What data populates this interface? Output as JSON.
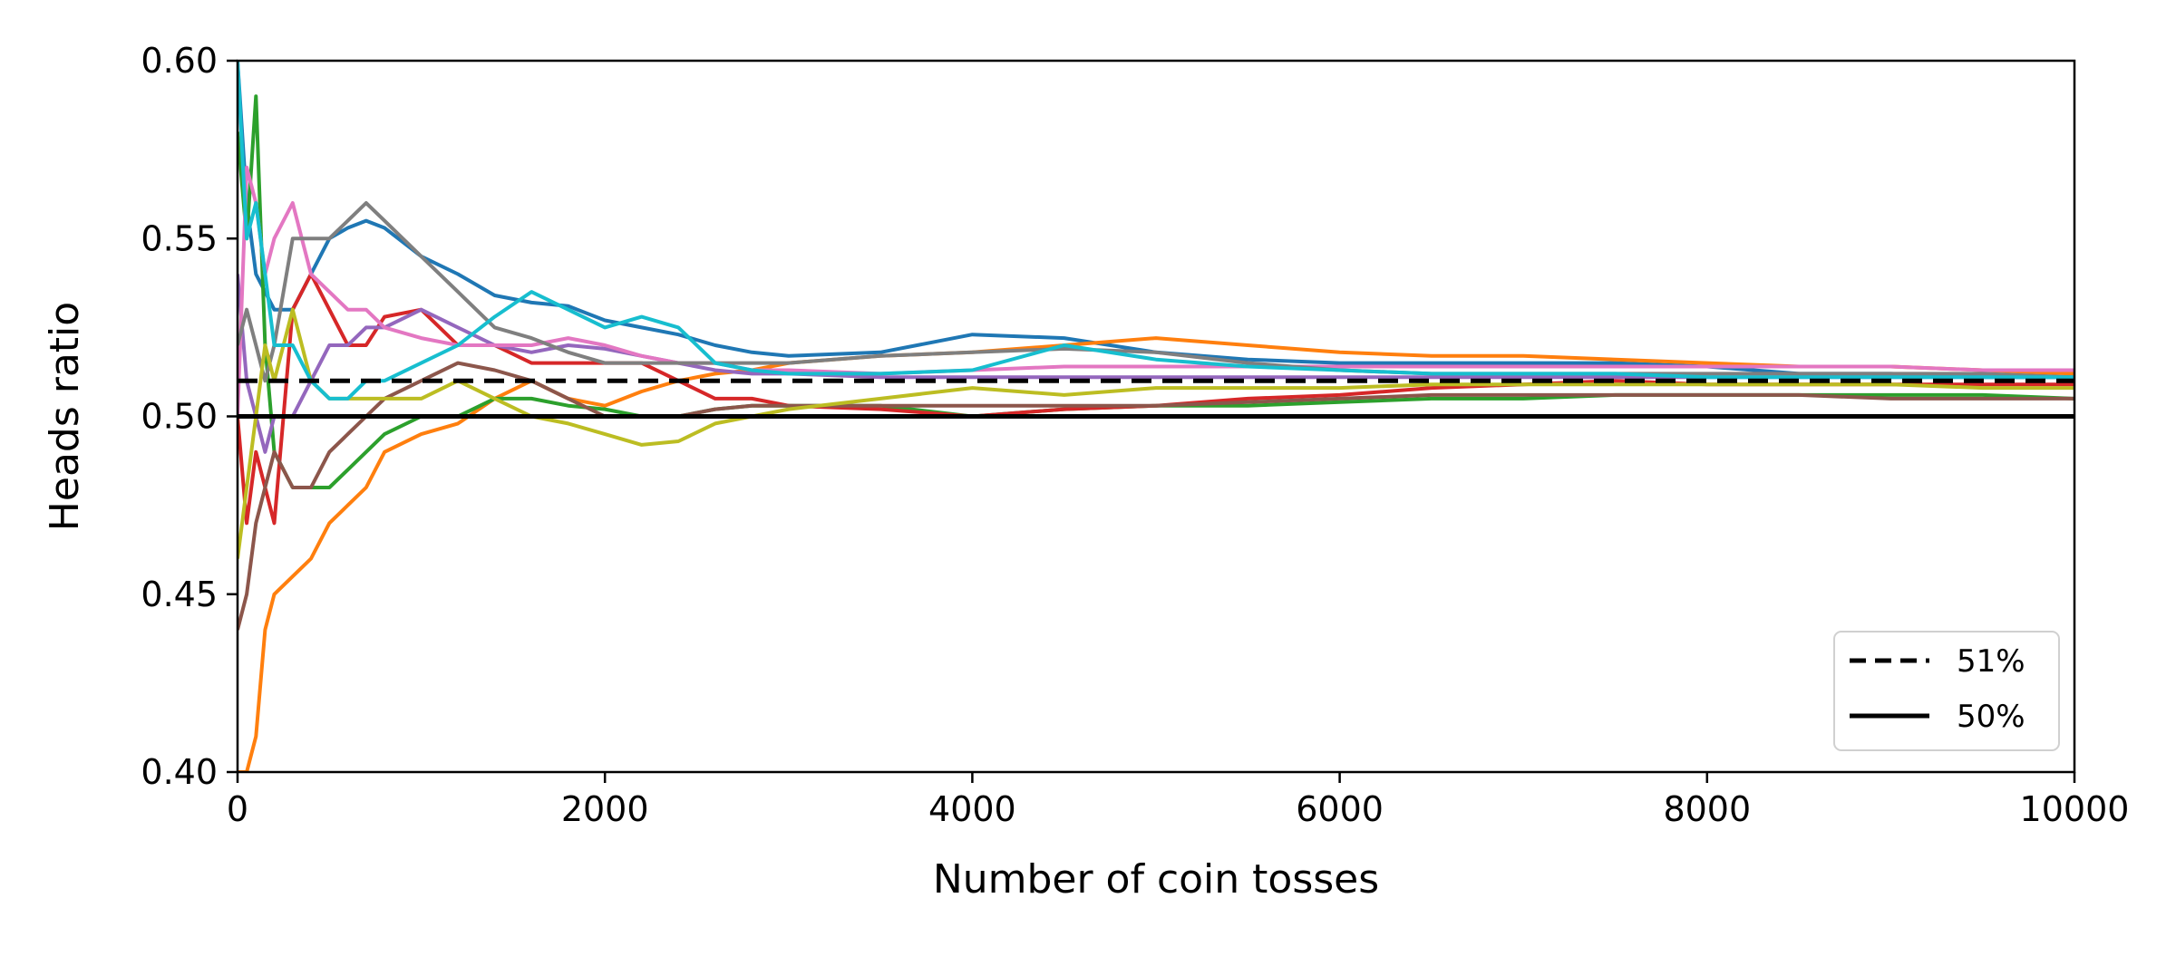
{
  "chart_data": {
    "type": "line",
    "title": "",
    "xlabel": "Number of coin tosses",
    "ylabel": "Heads ratio",
    "xlim": [
      0,
      10000
    ],
    "ylim": [
      0.4,
      0.6
    ],
    "xticks": [
      0,
      2000,
      4000,
      6000,
      8000,
      10000
    ],
    "xtick_labels": [
      "0",
      "2000",
      "4000",
      "6000",
      "8000",
      "10000"
    ],
    "yticks": [
      0.4,
      0.45,
      0.5,
      0.55,
      0.6
    ],
    "ytick_labels": [
      "0.40",
      "0.45",
      "0.50",
      "0.55",
      "0.60"
    ],
    "grid": false,
    "legend": {
      "placement": "lower-right",
      "entries": [
        {
          "label": "51%",
          "style": "dashed",
          "color": "#000000"
        },
        {
          "label": "50%",
          "style": "solid",
          "color": "#000000"
        }
      ]
    },
    "reference_lines": [
      {
        "y": 0.51,
        "style": "dashed",
        "color": "#000000"
      },
      {
        "y": 0.5,
        "style": "solid",
        "color": "#000000"
      }
    ],
    "series": [
      {
        "color": "#1f77b4",
        "x": [
          0,
          50,
          100,
          200,
          300,
          400,
          500,
          600,
          700,
          800,
          1000,
          1200,
          1400,
          1600,
          1800,
          2000,
          2200,
          2400,
          2600,
          2800,
          3000,
          3500,
          4000,
          4500,
          5000,
          5500,
          6000,
          6500,
          7000,
          7500,
          8000,
          8500,
          9000,
          9500,
          10000
        ],
        "y": [
          0.6,
          0.56,
          0.54,
          0.53,
          0.53,
          0.54,
          0.55,
          0.553,
          0.555,
          0.553,
          0.545,
          0.54,
          0.534,
          0.532,
          0.531,
          0.527,
          0.525,
          0.523,
          0.52,
          0.518,
          0.517,
          0.518,
          0.523,
          0.522,
          0.518,
          0.516,
          0.515,
          0.515,
          0.515,
          0.515,
          0.514,
          0.512,
          0.512,
          0.511,
          0.511
        ]
      },
      {
        "color": "#ff7f0e",
        "x": [
          0,
          50,
          100,
          150,
          200,
          300,
          400,
          500,
          600,
          700,
          800,
          1000,
          1200,
          1400,
          1600,
          1800,
          2000,
          2200,
          2400,
          2600,
          2800,
          3000,
          3500,
          4000,
          4500,
          5000,
          5500,
          6000,
          6500,
          7000,
          7500,
          8000,
          8500,
          9000,
          9500,
          10000
        ],
        "y": [
          0.4,
          0.4,
          0.41,
          0.44,
          0.45,
          0.455,
          0.46,
          0.47,
          0.475,
          0.48,
          0.49,
          0.495,
          0.498,
          0.505,
          0.51,
          0.505,
          0.503,
          0.507,
          0.51,
          0.512,
          0.513,
          0.515,
          0.517,
          0.518,
          0.52,
          0.522,
          0.52,
          0.518,
          0.517,
          0.517,
          0.516,
          0.515,
          0.514,
          0.514,
          0.513,
          0.512
        ]
      },
      {
        "color": "#2ca02c",
        "x": [
          0,
          50,
          100,
          150,
          200,
          300,
          400,
          500,
          600,
          700,
          800,
          1000,
          1200,
          1400,
          1600,
          1800,
          2000,
          2200,
          2400,
          2600,
          2800,
          3000,
          3500,
          4000,
          4500,
          5000,
          5500,
          6000,
          6500,
          7000,
          7500,
          8000,
          8500,
          9000,
          9500,
          10000
        ],
        "y": [
          0.58,
          0.55,
          0.59,
          0.52,
          0.49,
          0.48,
          0.48,
          0.48,
          0.485,
          0.49,
          0.495,
          0.5,
          0.5,
          0.505,
          0.505,
          0.503,
          0.502,
          0.5,
          0.5,
          0.502,
          0.503,
          0.503,
          0.503,
          0.5,
          0.502,
          0.503,
          0.503,
          0.504,
          0.505,
          0.505,
          0.506,
          0.506,
          0.506,
          0.506,
          0.506,
          0.505
        ]
      },
      {
        "color": "#d62728",
        "x": [
          0,
          50,
          100,
          150,
          200,
          300,
          400,
          500,
          600,
          700,
          800,
          1000,
          1200,
          1400,
          1600,
          1800,
          2000,
          2200,
          2400,
          2600,
          2800,
          3000,
          3500,
          4000,
          4500,
          5000,
          5500,
          6000,
          6500,
          7000,
          7500,
          8000,
          8500,
          9000,
          9500,
          10000
        ],
        "y": [
          0.5,
          0.47,
          0.49,
          0.48,
          0.47,
          0.53,
          0.54,
          0.53,
          0.52,
          0.52,
          0.528,
          0.53,
          0.52,
          0.52,
          0.515,
          0.515,
          0.515,
          0.515,
          0.51,
          0.505,
          0.505,
          0.503,
          0.502,
          0.5,
          0.502,
          0.503,
          0.505,
          0.506,
          0.508,
          0.509,
          0.51,
          0.509,
          0.509,
          0.509,
          0.509,
          0.509
        ]
      },
      {
        "color": "#9467bd",
        "x": [
          0,
          50,
          100,
          150,
          200,
          300,
          400,
          500,
          600,
          700,
          800,
          1000,
          1200,
          1400,
          1600,
          1800,
          2000,
          2200,
          2400,
          2600,
          2800,
          3000,
          3500,
          4000,
          4500,
          5000,
          5500,
          6000,
          6500,
          7000,
          7500,
          8000,
          8500,
          9000,
          9500,
          10000
        ],
        "y": [
          0.54,
          0.51,
          0.5,
          0.49,
          0.5,
          0.5,
          0.51,
          0.52,
          0.52,
          0.525,
          0.525,
          0.53,
          0.525,
          0.52,
          0.518,
          0.52,
          0.519,
          0.517,
          0.515,
          0.513,
          0.512,
          0.512,
          0.511,
          0.511,
          0.511,
          0.511,
          0.511,
          0.511,
          0.511,
          0.511,
          0.511,
          0.511,
          0.511,
          0.511,
          0.511,
          0.511
        ]
      },
      {
        "color": "#8c564b",
        "x": [
          0,
          50,
          100,
          150,
          200,
          300,
          400,
          500,
          600,
          700,
          800,
          1000,
          1200,
          1400,
          1600,
          1800,
          2000,
          2200,
          2400,
          2600,
          2800,
          3000,
          3500,
          4000,
          4500,
          5000,
          5500,
          6000,
          6500,
          7000,
          7500,
          8000,
          8500,
          9000,
          9500,
          10000
        ],
        "y": [
          0.44,
          0.45,
          0.47,
          0.48,
          0.49,
          0.48,
          0.48,
          0.49,
          0.495,
          0.5,
          0.505,
          0.51,
          0.515,
          0.513,
          0.51,
          0.505,
          0.5,
          0.5,
          0.5,
          0.502,
          0.503,
          0.503,
          0.503,
          0.503,
          0.503,
          0.503,
          0.504,
          0.505,
          0.506,
          0.506,
          0.506,
          0.506,
          0.506,
          0.505,
          0.505,
          0.505
        ]
      },
      {
        "color": "#e377c2",
        "x": [
          0,
          50,
          100,
          150,
          200,
          300,
          400,
          500,
          600,
          700,
          800,
          1000,
          1200,
          1400,
          1600,
          1800,
          2000,
          2200,
          2400,
          2600,
          2800,
          3000,
          3500,
          4000,
          4500,
          5000,
          5500,
          6000,
          6500,
          7000,
          7500,
          8000,
          8500,
          9000,
          9500,
          10000
        ],
        "y": [
          0.5,
          0.57,
          0.56,
          0.54,
          0.55,
          0.56,
          0.54,
          0.535,
          0.53,
          0.53,
          0.525,
          0.522,
          0.52,
          0.52,
          0.52,
          0.522,
          0.52,
          0.517,
          0.515,
          0.515,
          0.513,
          0.513,
          0.512,
          0.513,
          0.514,
          0.514,
          0.514,
          0.514,
          0.514,
          0.514,
          0.514,
          0.514,
          0.514,
          0.514,
          0.513,
          0.513
        ]
      },
      {
        "color": "#7f7f7f",
        "x": [
          0,
          50,
          100,
          150,
          200,
          300,
          400,
          500,
          600,
          700,
          800,
          1000,
          1200,
          1400,
          1600,
          1800,
          2000,
          2200,
          2400,
          2600,
          2800,
          3000,
          3500,
          4000,
          4500,
          5000,
          5500,
          6000,
          6500,
          7000,
          7500,
          8000,
          8500,
          9000,
          9500,
          10000
        ],
        "y": [
          0.52,
          0.53,
          0.52,
          0.51,
          0.52,
          0.55,
          0.55,
          0.55,
          0.555,
          0.56,
          0.555,
          0.545,
          0.535,
          0.525,
          0.522,
          0.518,
          0.515,
          0.515,
          0.515,
          0.515,
          0.515,
          0.515,
          0.517,
          0.518,
          0.519,
          0.518,
          0.515,
          0.513,
          0.512,
          0.512,
          0.512,
          0.512,
          0.512,
          0.512,
          0.512,
          0.511
        ]
      },
      {
        "color": "#bcbd22",
        "x": [
          0,
          50,
          100,
          150,
          200,
          300,
          400,
          500,
          600,
          700,
          800,
          1000,
          1200,
          1400,
          1600,
          1800,
          2000,
          2200,
          2400,
          2600,
          2800,
          3000,
          3500,
          4000,
          4500,
          5000,
          5500,
          6000,
          6500,
          7000,
          7500,
          8000,
          8500,
          9000,
          9500,
          10000
        ],
        "y": [
          0.46,
          0.48,
          0.5,
          0.52,
          0.51,
          0.53,
          0.51,
          0.505,
          0.505,
          0.505,
          0.505,
          0.505,
          0.51,
          0.505,
          0.5,
          0.498,
          0.495,
          0.492,
          0.493,
          0.498,
          0.5,
          0.502,
          0.505,
          0.508,
          0.506,
          0.508,
          0.508,
          0.508,
          0.509,
          0.509,
          0.509,
          0.509,
          0.509,
          0.509,
          0.508,
          0.508
        ]
      },
      {
        "color": "#17becf",
        "x": [
          0,
          50,
          100,
          150,
          200,
          300,
          400,
          500,
          600,
          700,
          800,
          1000,
          1200,
          1400,
          1600,
          1800,
          2000,
          2200,
          2400,
          2600,
          2800,
          3000,
          3500,
          4000,
          4500,
          5000,
          5500,
          6000,
          6500,
          7000,
          7500,
          8000,
          8500,
          9000,
          9500,
          10000
        ],
        "y": [
          0.6,
          0.55,
          0.56,
          0.54,
          0.52,
          0.52,
          0.51,
          0.505,
          0.505,
          0.51,
          0.51,
          0.515,
          0.52,
          0.528,
          0.535,
          0.53,
          0.525,
          0.528,
          0.525,
          0.515,
          0.513,
          0.512,
          0.512,
          0.513,
          0.52,
          0.516,
          0.514,
          0.513,
          0.512,
          0.512,
          0.512,
          0.511,
          0.511,
          0.511,
          0.511,
          0.511
        ]
      }
    ]
  }
}
